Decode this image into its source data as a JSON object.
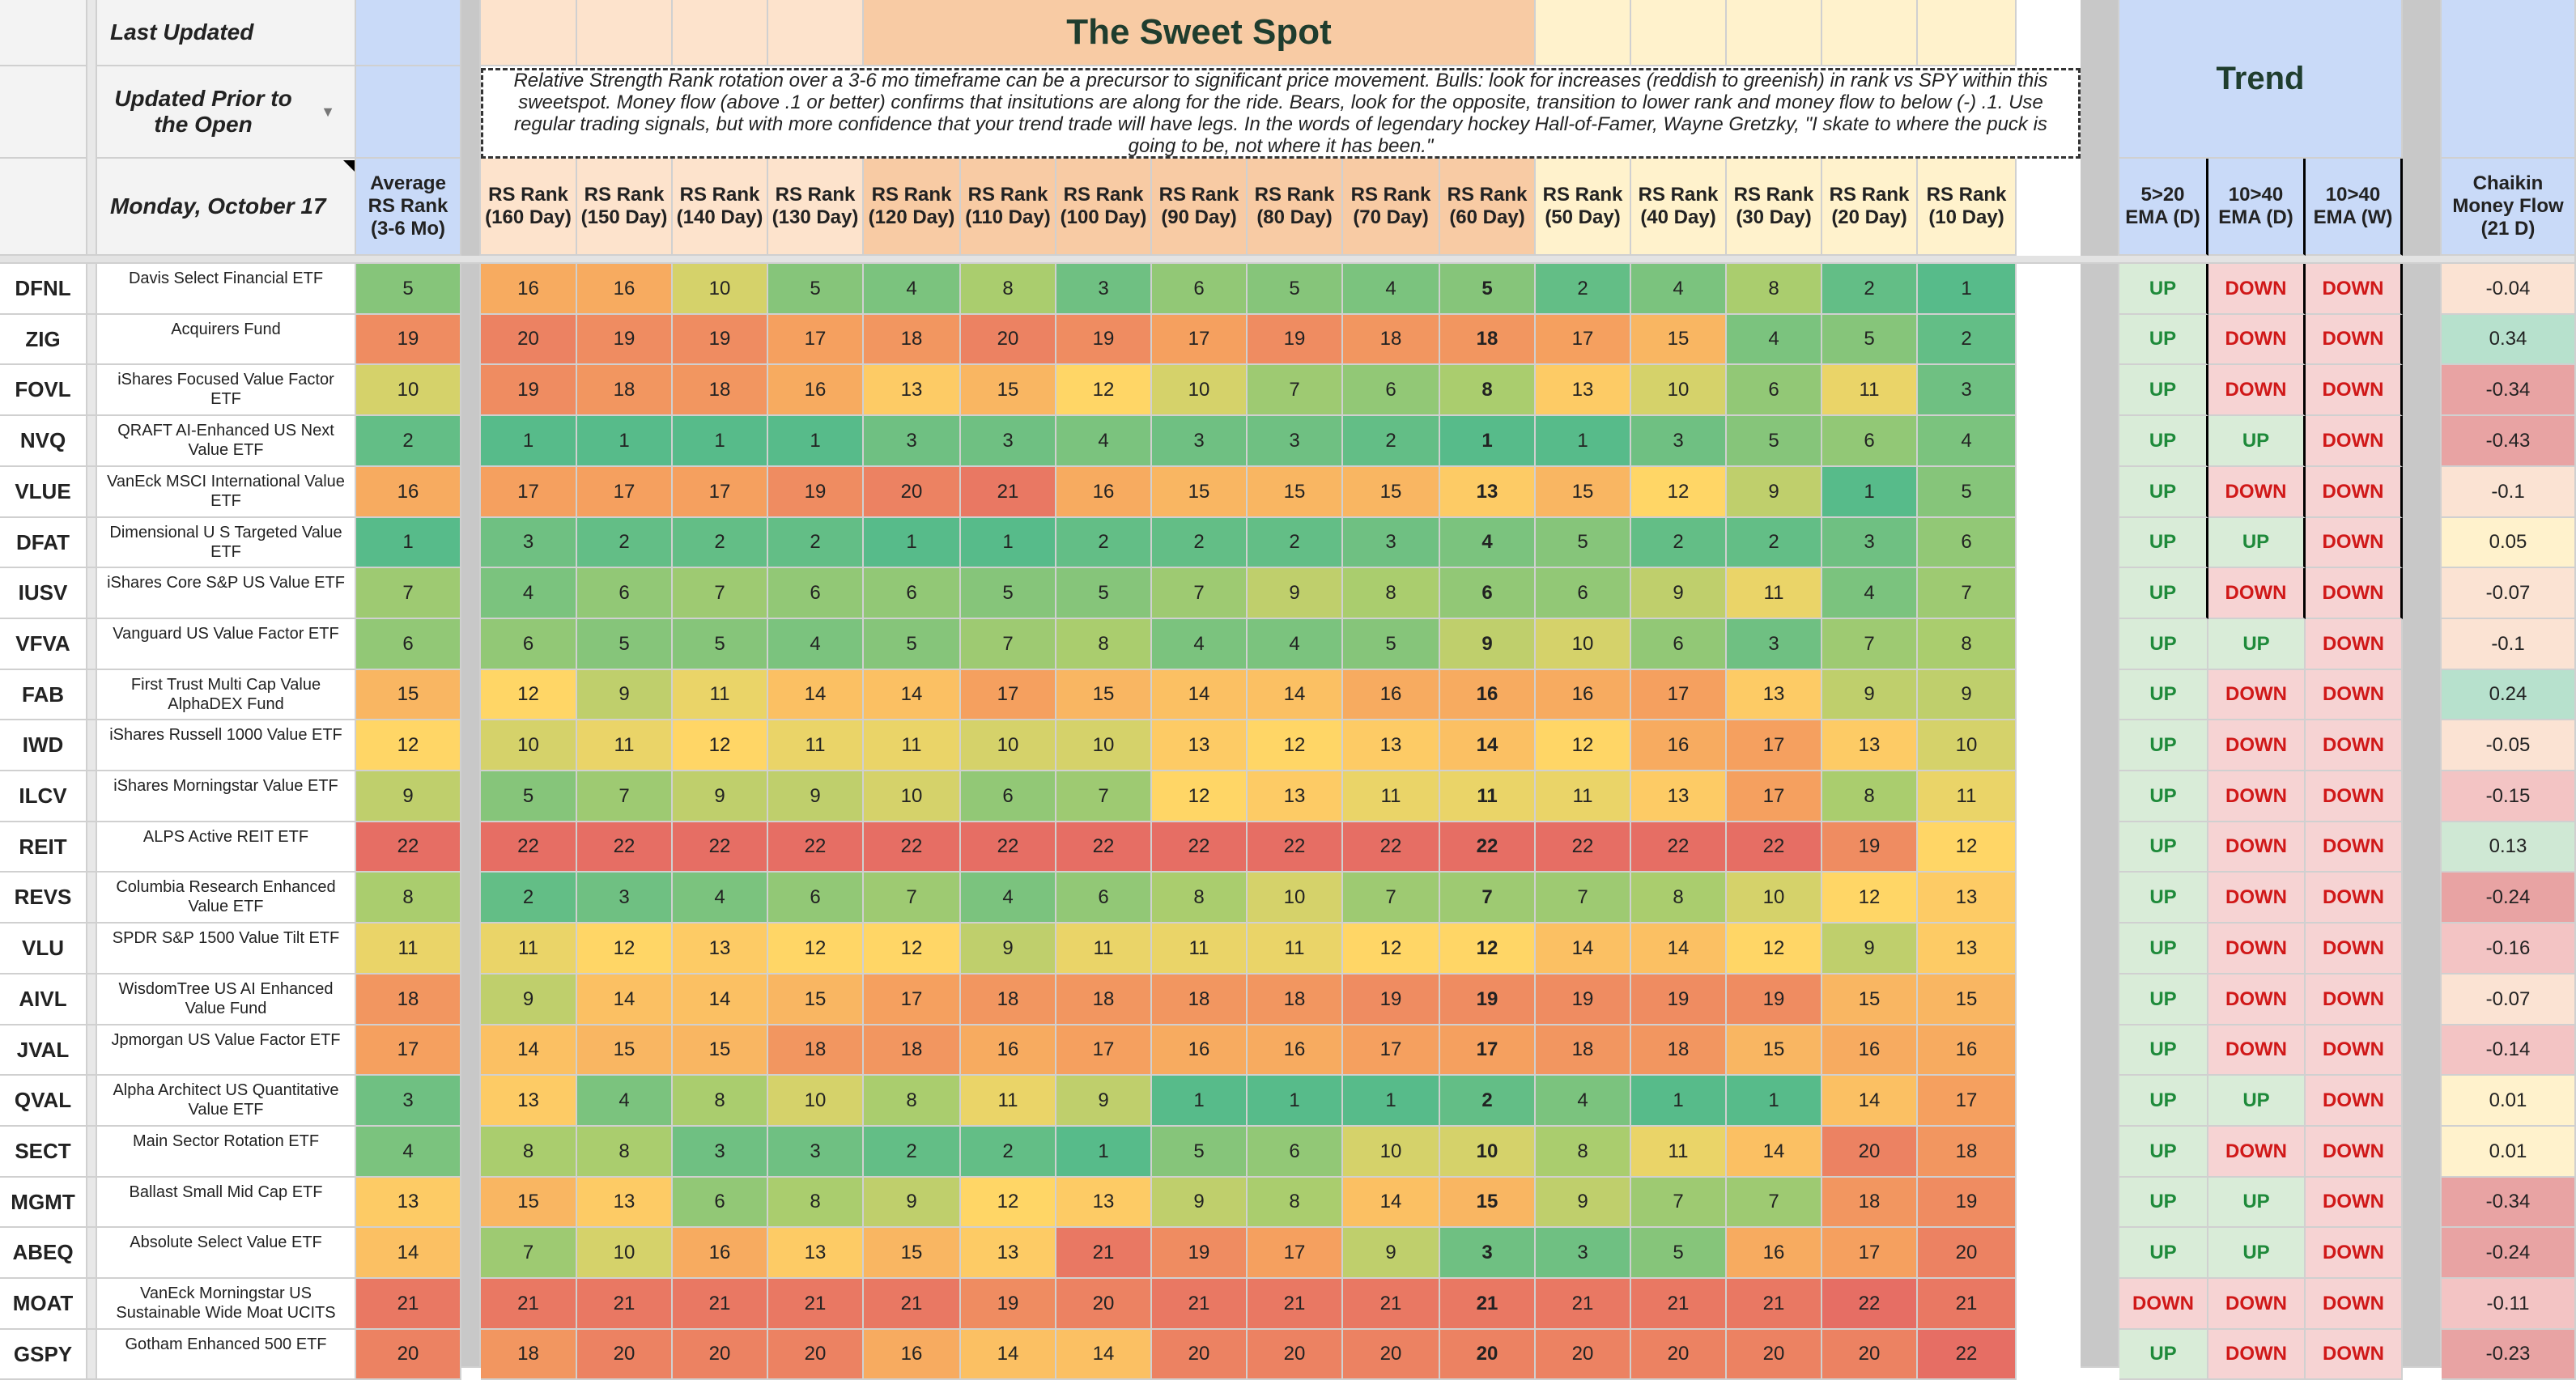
{
  "header": {
    "last_updated_label": "Last Updated",
    "update_status": "Updated Prior to the Open",
    "date": "Monday, October 17",
    "sweet_spot_title": "The Sweet Spot",
    "trend_title": "Trend",
    "description": "Relative Strength Rank rotation over a 3-6 mo timeframe can be a precursor to significant price movement.  Bulls: look for increases (reddish to greenish) in rank vs SPY within this sweetspot. Money flow (above .1 or better) confirms that insitutions are along for the ride. Bears, look for the opposite, transition to lower rank and money flow to below (-) .1.  Use regular trading signals, but with more confidence that your trend trade will have legs. In the words of legendary hockey Hall-of-Famer, Wayne Gretzky, \"I skate to where the puck is going to be, not where it has been.\""
  },
  "columns": {
    "avg": "Average RS Rank (3-6 Mo)",
    "ranks": [
      "RS Rank (160 Day)",
      "RS Rank (150 Day)",
      "RS Rank (140 Day)",
      "RS Rank (130 Day)",
      "RS Rank (120 Day)",
      "RS Rank (110 Day)",
      "RS Rank (100 Day)",
      "RS Rank (90 Day)",
      "RS Rank (80 Day)",
      "RS Rank (70 Day)",
      "RS Rank (60 Day)",
      "RS Rank (50 Day)",
      "RS Rank (40 Day)",
      "RS Rank (30 Day)",
      "RS Rank (20 Day)",
      "RS Rank (10 Day)"
    ],
    "trends": [
      "5>20 EMA (D)",
      "10>40 EMA (D)",
      "10>40 EMA (W)"
    ],
    "chaikin": "Chaikin Money Flow (21 D)"
  },
  "colors": {
    "up_text": "#1e8a3a",
    "down_text": "#d01818",
    "up_bg": "#d9ecd8",
    "down_bg": "#f6d3d3",
    "header_blue": "#c9daf8",
    "header_orange": "#f8cba4",
    "header_peach": "#fde3cc",
    "header_yellow": "#fff2cc"
  },
  "rows": [
    {
      "ticker": "DFNL",
      "name": "Davis Select Financial ETF",
      "avg": 5,
      "ranks": [
        16,
        16,
        10,
        5,
        4,
        8,
        3,
        6,
        5,
        4,
        5,
        2,
        4,
        8,
        2,
        1
      ],
      "trend": [
        "UP",
        "DOWN",
        "DOWN"
      ],
      "cmf": "-0.04"
    },
    {
      "ticker": "ZIG",
      "name": "Acquirers Fund",
      "avg": 19,
      "ranks": [
        20,
        19,
        19,
        17,
        18,
        20,
        19,
        17,
        19,
        18,
        18,
        17,
        15,
        4,
        5,
        2
      ],
      "trend": [
        "UP",
        "DOWN",
        "DOWN"
      ],
      "cmf": "0.34"
    },
    {
      "ticker": "FOVL",
      "name": "iShares Focused Value Factor ETF",
      "avg": 10,
      "ranks": [
        19,
        18,
        18,
        16,
        13,
        15,
        12,
        10,
        7,
        6,
        8,
        13,
        10,
        6,
        11,
        3
      ],
      "trend": [
        "UP",
        "DOWN",
        "DOWN"
      ],
      "cmf": "-0.34"
    },
    {
      "ticker": "NVQ",
      "name": "QRAFT AI-Enhanced US Next Value ETF",
      "avg": 2,
      "ranks": [
        1,
        1,
        1,
        1,
        3,
        3,
        4,
        3,
        3,
        2,
        1,
        1,
        3,
        5,
        6,
        4
      ],
      "trend": [
        "UP",
        "UP",
        "DOWN"
      ],
      "cmf": "-0.43"
    },
    {
      "ticker": "VLUE",
      "name": "VanEck MSCI International Value ETF",
      "avg": 16,
      "ranks": [
        17,
        17,
        17,
        19,
        20,
        21,
        16,
        15,
        15,
        15,
        13,
        15,
        12,
        9,
        1,
        5
      ],
      "trend": [
        "UP",
        "DOWN",
        "DOWN"
      ],
      "cmf": "-0.1"
    },
    {
      "ticker": "DFAT",
      "name": "Dimensional U S Targeted Value ETF",
      "avg": 1,
      "ranks": [
        3,
        2,
        2,
        2,
        1,
        1,
        2,
        2,
        2,
        3,
        4,
        5,
        2,
        2,
        3,
        6
      ],
      "trend": [
        "UP",
        "UP",
        "DOWN"
      ],
      "cmf": "0.05"
    },
    {
      "ticker": "IUSV",
      "name": "iShares Core S&P US Value ETF",
      "avg": 7,
      "ranks": [
        4,
        6,
        7,
        6,
        6,
        5,
        5,
        7,
        9,
        8,
        6,
        6,
        9,
        11,
        4,
        7
      ],
      "trend": [
        "UP",
        "DOWN",
        "DOWN"
      ],
      "cmf": "-0.07"
    },
    {
      "ticker": "VFVA",
      "name": "Vanguard US Value Factor ETF",
      "avg": 6,
      "ranks": [
        6,
        5,
        5,
        4,
        5,
        7,
        8,
        4,
        4,
        5,
        9,
        10,
        6,
        3,
        7,
        8
      ],
      "trend": [
        "UP",
        "UP",
        "DOWN"
      ],
      "cmf": "-0.1"
    },
    {
      "ticker": "FAB",
      "name": "First Trust Multi Cap Value AlphaDEX Fund",
      "avg": 15,
      "ranks": [
        12,
        9,
        11,
        14,
        14,
        17,
        15,
        14,
        14,
        16,
        16,
        16,
        17,
        13,
        9,
        9
      ],
      "trend": [
        "UP",
        "DOWN",
        "DOWN"
      ],
      "cmf": "0.24"
    },
    {
      "ticker": "IWD",
      "name": "iShares Russell 1000 Value ETF",
      "avg": 12,
      "ranks": [
        10,
        11,
        12,
        11,
        11,
        10,
        10,
        13,
        12,
        13,
        14,
        12,
        16,
        17,
        13,
        10
      ],
      "trend": [
        "UP",
        "DOWN",
        "DOWN"
      ],
      "cmf": "-0.05"
    },
    {
      "ticker": "ILCV",
      "name": "iShares Morningstar Value ETF",
      "avg": 9,
      "ranks": [
        5,
        7,
        9,
        9,
        10,
        6,
        7,
        12,
        13,
        11,
        11,
        11,
        13,
        17,
        8,
        11
      ],
      "trend": [
        "UP",
        "DOWN",
        "DOWN"
      ],
      "cmf": "-0.15"
    },
    {
      "ticker": "REIT",
      "name": "ALPS Active REIT ETF",
      "avg": 22,
      "ranks": [
        22,
        22,
        22,
        22,
        22,
        22,
        22,
        22,
        22,
        22,
        22,
        22,
        22,
        22,
        19,
        12
      ],
      "trend": [
        "UP",
        "DOWN",
        "DOWN"
      ],
      "cmf": "0.13"
    },
    {
      "ticker": "REVS",
      "name": "Columbia Research Enhanced Value ETF",
      "avg": 8,
      "ranks": [
        2,
        3,
        4,
        6,
        7,
        4,
        6,
        8,
        10,
        7,
        7,
        7,
        8,
        10,
        12,
        13
      ],
      "trend": [
        "UP",
        "DOWN",
        "DOWN"
      ],
      "cmf": "-0.24"
    },
    {
      "ticker": "VLU",
      "name": "SPDR S&P 1500 Value Tilt ETF",
      "avg": 11,
      "ranks": [
        11,
        12,
        13,
        12,
        12,
        9,
        11,
        11,
        11,
        12,
        12,
        14,
        14,
        12,
        9,
        13
      ],
      "trend": [
        "UP",
        "DOWN",
        "DOWN"
      ],
      "cmf": "-0.16"
    },
    {
      "ticker": "AIVL",
      "name": "WisdomTree US AI Enhanced Value Fund",
      "avg": 18,
      "ranks": [
        9,
        14,
        14,
        15,
        17,
        18,
        18,
        18,
        18,
        19,
        19,
        19,
        19,
        19,
        15,
        15
      ],
      "trend": [
        "UP",
        "DOWN",
        "DOWN"
      ],
      "cmf": "-0.07"
    },
    {
      "ticker": "JVAL",
      "name": "Jpmorgan US Value Factor ETF",
      "avg": 17,
      "ranks": [
        14,
        15,
        15,
        18,
        18,
        16,
        17,
        16,
        16,
        17,
        17,
        18,
        18,
        15,
        16,
        16
      ],
      "trend": [
        "UP",
        "DOWN",
        "DOWN"
      ],
      "cmf": "-0.14"
    },
    {
      "ticker": "QVAL",
      "name": "Alpha Architect US Quantitative Value ETF",
      "avg": 3,
      "ranks": [
        13,
        4,
        8,
        10,
        8,
        11,
        9,
        1,
        1,
        1,
        2,
        4,
        1,
        1,
        14,
        17
      ],
      "trend": [
        "UP",
        "UP",
        "DOWN"
      ],
      "cmf": "0.01"
    },
    {
      "ticker": "SECT",
      "name": "Main Sector Rotation ETF",
      "avg": 4,
      "ranks": [
        8,
        8,
        3,
        3,
        2,
        2,
        1,
        5,
        6,
        10,
        10,
        8,
        11,
        14,
        20,
        18
      ],
      "trend": [
        "UP",
        "DOWN",
        "DOWN"
      ],
      "cmf": "0.01"
    },
    {
      "ticker": "MGMT",
      "name": "Ballast Small Mid Cap ETF",
      "avg": 13,
      "ranks": [
        15,
        13,
        6,
        8,
        9,
        12,
        13,
        9,
        8,
        14,
        15,
        9,
        7,
        7,
        18,
        19
      ],
      "trend": [
        "UP",
        "UP",
        "DOWN"
      ],
      "cmf": "-0.34"
    },
    {
      "ticker": "ABEQ",
      "name": "Absolute Select Value ETF",
      "avg": 14,
      "ranks": [
        7,
        10,
        16,
        13,
        15,
        13,
        21,
        19,
        17,
        9,
        3,
        3,
        5,
        16,
        17,
        20
      ],
      "trend": [
        "UP",
        "UP",
        "DOWN"
      ],
      "cmf": "-0.24"
    },
    {
      "ticker": "MOAT",
      "name": "VanEck Morningstar US Sustainable Wide Moat UCITS",
      "avg": 21,
      "ranks": [
        21,
        21,
        21,
        21,
        21,
        19,
        20,
        21,
        21,
        21,
        21,
        21,
        21,
        21,
        22,
        21
      ],
      "trend": [
        "DOWN",
        "DOWN",
        "DOWN"
      ],
      "cmf": "-0.11"
    },
    {
      "ticker": "GSPY",
      "name": "Gotham Enhanced 500 ETF",
      "avg": 20,
      "ranks": [
        18,
        20,
        20,
        20,
        16,
        14,
        14,
        20,
        20,
        20,
        20,
        20,
        20,
        20,
        20,
        22
      ],
      "trend": [
        "UP",
        "DOWN",
        "DOWN"
      ],
      "cmf": "-0.23"
    }
  ]
}
